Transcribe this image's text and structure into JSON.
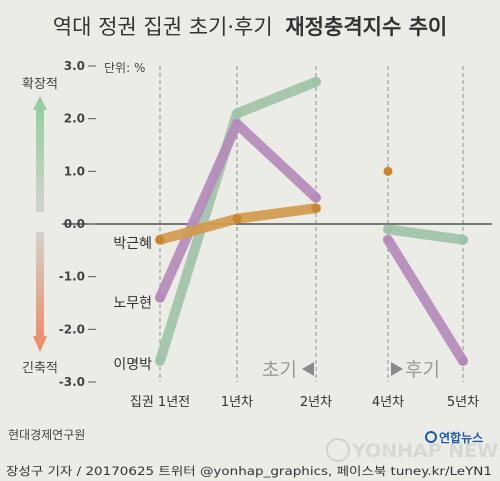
{
  "title": {
    "light": "역대 정권 집권 초기·후기",
    "bold": "재정충격지수 추이"
  },
  "unit_label": "단위: %",
  "legend": {
    "top": "확장적",
    "bottom": "긴축적"
  },
  "phase_labels": {
    "early": "초기",
    "late": "후기"
  },
  "source": "현대경제연구원",
  "credit": "장성구 기자 / 20170625 트위터 @yonhap_graphics, 페이스북 tuney.kr/LeYN1",
  "watermark": "YONHAP NEWS",
  "logo": "연합뉴스",
  "colors": {
    "이명박": "#9fc3a8",
    "노무현": "#b48bbb",
    "박근혜": "#d39a4d"
  },
  "chart_data": {
    "type": "line",
    "categories": [
      "집권 1년전",
      "1년차",
      "2년차",
      "4년차",
      "5년차"
    ],
    "ylim": [
      -3.0,
      3.0
    ],
    "yticks": [
      "3.0",
      "2.0",
      "1.0",
      "0.0",
      "-1.0",
      "-2.0",
      "-3.0"
    ],
    "series": [
      {
        "name": "이명박",
        "segments": [
          [
            [
              0,
              -2.6
            ],
            [
              1,
              2.1
            ],
            [
              2,
              2.7
            ]
          ],
          [
            [
              3,
              -0.1
            ],
            [
              4,
              -0.3
            ]
          ]
        ]
      },
      {
        "name": "노무현",
        "segments": [
          [
            [
              0,
              -1.4
            ],
            [
              1,
              1.9
            ],
            [
              2,
              0.5
            ]
          ],
          [
            [
              3,
              -0.3
            ],
            [
              4,
              -2.6
            ]
          ]
        ]
      },
      {
        "name": "박근혜",
        "segments": [
          [
            [
              0,
              -0.3
            ],
            [
              1,
              0.1
            ],
            [
              2,
              0.3
            ]
          ],
          [
            [
              3,
              1.0
            ]
          ]
        ]
      }
    ]
  }
}
